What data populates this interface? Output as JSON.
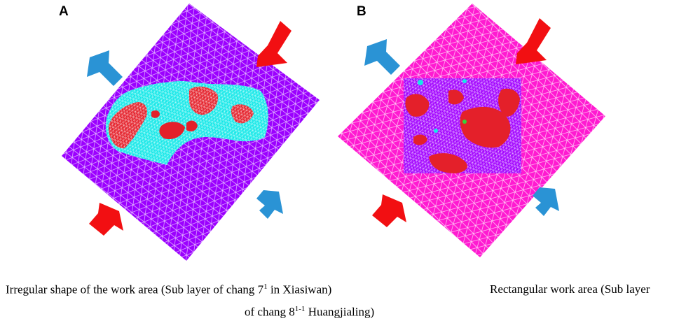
{
  "panels": [
    {
      "letter": "A",
      "mesh_color": "#9b00ff",
      "zone_color": "#14e8e8",
      "patch_color": "#e4202a"
    },
    {
      "letter": "B",
      "mesh_color": "#ff1ad1",
      "zone_color": "#a100ff",
      "patch_color": "#e4202a"
    }
  ],
  "arrows": {
    "blue": "#2a93d5",
    "red": "#f20f12"
  },
  "captions": {
    "line1_a_pre": "Irregular shape of the work area (Sub layer of chang 7",
    "line1_a_sup": "1",
    "line1_a_post": " in Xiasiwan)",
    "line1_b": "Rectangular work area (Sub layer",
    "line2_pre": "of chang 8",
    "line2_sup": "1-1",
    "line2_post": " Huangjialing)"
  }
}
